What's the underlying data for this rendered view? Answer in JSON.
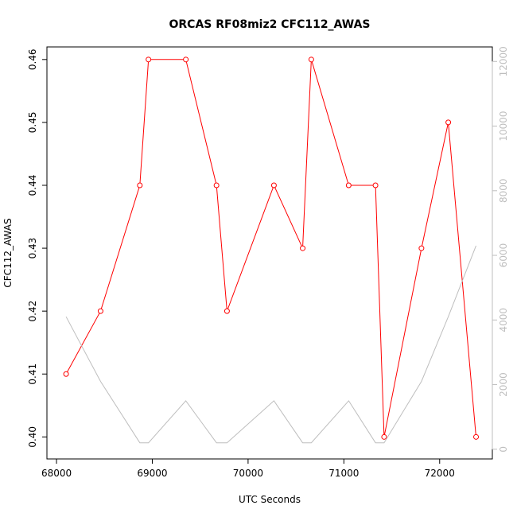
{
  "chart_data": {
    "type": "line",
    "title": "ORCAS RF08miz2 CFC112_AWAS",
    "xlabel": "UTC Seconds",
    "ylabel": "CFC112_AWAS",
    "xlim": [
      67900,
      72550
    ],
    "ylim": [
      0.3965,
      0.462
    ],
    "y2lim": [
      -300,
      12450
    ],
    "x_ticks": [
      68000,
      69000,
      70000,
      71000,
      72000
    ],
    "y_ticks": [
      0.4,
      0.41,
      0.42,
      0.43,
      0.44,
      0.45,
      0.46
    ],
    "y2_ticks": [
      0,
      2000,
      4000,
      6000,
      8000,
      10000,
      12000
    ],
    "series": [
      {
        "axis": "left",
        "color": "#ff0000",
        "marker": "open-circle",
        "x": [
          68100,
          68460,
          68870,
          68960,
          69350,
          69670,
          69780,
          70270,
          70570,
          70660,
          71050,
          71330,
          71420,
          71810,
          72090,
          72380
        ],
        "y": [
          0.41,
          0.42,
          0.44,
          0.46,
          0.46,
          0.44,
          0.42,
          0.44,
          0.43,
          0.46,
          0.44,
          0.44,
          0.4,
          0.43,
          0.45,
          0.4
        ]
      },
      {
        "axis": "right",
        "color": "#bebebe",
        "marker": "none",
        "x": [
          68100,
          68460,
          68870,
          68960,
          69350,
          69670,
          69780,
          70270,
          70570,
          70660,
          71050,
          71330,
          71420,
          71810,
          72090,
          72380
        ],
        "y": [
          4100,
          2100,
          200,
          200,
          1500,
          200,
          200,
          1500,
          200,
          200,
          1500,
          200,
          200,
          2100,
          4100,
          6300
        ]
      }
    ]
  }
}
